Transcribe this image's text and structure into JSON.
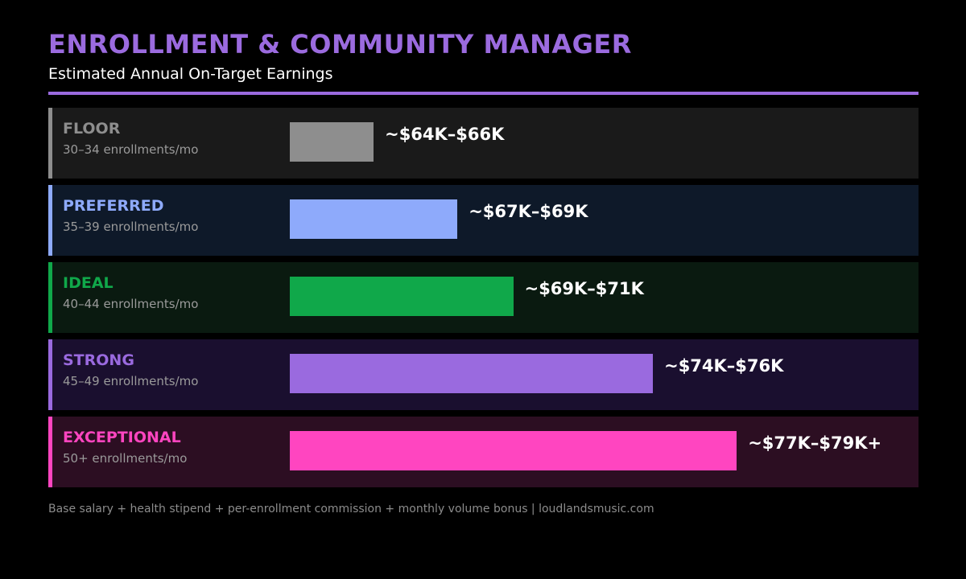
{
  "header": {
    "title": "ENROLLMENT & COMMUNITY MANAGER",
    "subtitle": "Estimated Annual On-Target Earnings",
    "accent_color": "#9b6bdf"
  },
  "chart_data": {
    "type": "bar",
    "orientation": "horizontal",
    "title": "ENROLLMENT & COMMUNITY MANAGER",
    "subtitle": "Estimated Annual On-Target Earnings",
    "unit": "USD (thousands)",
    "x_min_k": 63,
    "categories": [
      "FLOOR",
      "PREFERRED",
      "IDEAL",
      "STRONG",
      "EXCEPTIONAL"
    ],
    "tiers": [
      {
        "name": "FLOOR",
        "range": "30–34 enrollments/mo",
        "label": "~$64K–$66K",
        "low_k": 64,
        "high_k": 66,
        "color": "#8e8e8e",
        "bg": "#1a1a1a"
      },
      {
        "name": "PREFERRED",
        "range": "35–39 enrollments/mo",
        "label": "~$67K–$69K",
        "low_k": 67,
        "high_k": 69,
        "color": "#8eaafb",
        "bg": "#0e1929"
      },
      {
        "name": "IDEAL",
        "range": "40–44 enrollments/mo",
        "label": "~$69K–$71K",
        "low_k": 69,
        "high_k": 71,
        "color": "#10a84a",
        "bg": "#0a1a10"
      },
      {
        "name": "STRONG",
        "range": "45–49 enrollments/mo",
        "label": "~$74K–$76K",
        "low_k": 74,
        "high_k": 76,
        "color": "#9a6adf",
        "bg": "#1a0f2f"
      },
      {
        "name": "EXCEPTIONAL",
        "range": "50+ enrollments/mo",
        "label": "~$77K–$79K+",
        "low_k": 77,
        "high_k": 79,
        "color": "#ff45c0",
        "bg": "#2c0e22"
      }
    ]
  },
  "footer": {
    "note": "Base salary + health stipend + per-enrollment commission + monthly volume bonus  |  loudlandsmusic.com"
  }
}
